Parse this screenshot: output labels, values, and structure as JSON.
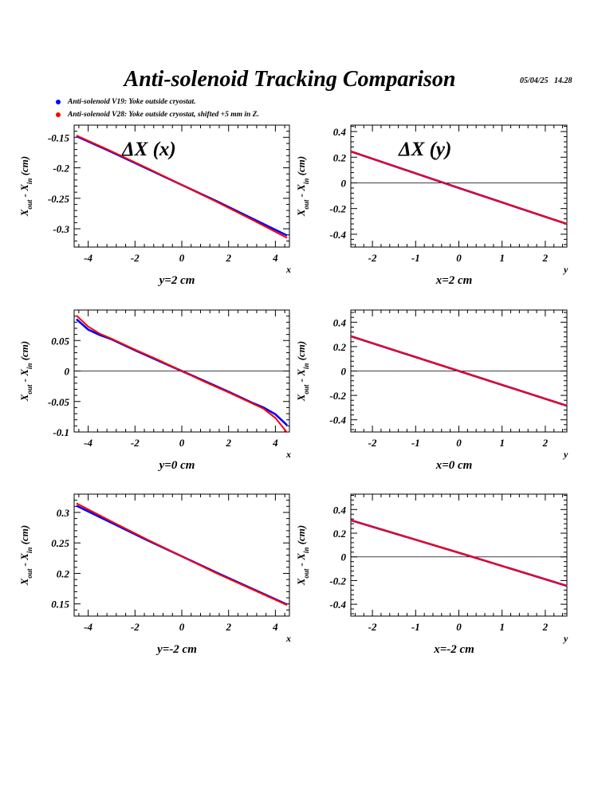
{
  "title": "Anti-solenoid Tracking Comparison",
  "timestamp": "05/04/25   14.28",
  "legend": [
    {
      "label": "Anti-solenoid V19: Yoke outside cryostat.",
      "color": "#0000ff"
    },
    {
      "label": "Anti-solenoid V28: Yoke outside cryostat, shifted +5 mm in Z.",
      "color": "#ff0000"
    }
  ],
  "y_label": {
    "main": "X",
    "sub_out": "out",
    "dash": " - X",
    "sub_in": "in",
    "unit": " (cm)"
  },
  "colors": {
    "series_a": "#0000ff",
    "series_b": "#ff0000",
    "axis": "#000000"
  },
  "chart_data": [
    {
      "type": "line",
      "panel_title": "ΔX (x)",
      "condition_label": "y=2 cm",
      "axis_end_label": "x",
      "xlim": [
        -4.6,
        4.6
      ],
      "ylim": [
        -0.33,
        -0.13
      ],
      "xticks": [
        -4,
        -2,
        0,
        2,
        4
      ],
      "yticks": [
        -0.15,
        -0.2,
        -0.25,
        -0.3
      ],
      "ytick_labels": [
        "-0.15",
        "-0.2",
        "-0.25",
        "-0.3"
      ],
      "zero_line": false,
      "x": [
        -4.5,
        -3,
        -1.5,
        0,
        1.5,
        3,
        4.5
      ],
      "series": [
        {
          "color": "#0000ff",
          "values": [
            -0.148,
            -0.174,
            -0.201,
            -0.228,
            -0.255,
            -0.283,
            -0.311
          ]
        },
        {
          "color": "#ff0000",
          "values": [
            -0.147,
            -0.173,
            -0.2,
            -0.228,
            -0.256,
            -0.285,
            -0.315
          ]
        }
      ]
    },
    {
      "type": "line",
      "panel_title": "ΔX (y)",
      "condition_label": "x=2 cm",
      "axis_end_label": "y",
      "xlim": [
        -2.5,
        2.5
      ],
      "ylim": [
        -0.5,
        0.45
      ],
      "xticks": [
        -2,
        -1,
        0,
        1,
        2
      ],
      "yticks": [
        0.4,
        0.2,
        0,
        -0.2,
        -0.4
      ],
      "ytick_labels": [
        "0.4",
        "0.2",
        "0",
        "-0.2",
        "-0.4"
      ],
      "zero_line": true,
      "x": [
        -2.5,
        0,
        2.5
      ],
      "series": [
        {
          "color": "#0000ff",
          "values": [
            0.245,
            -0.04,
            -0.32
          ]
        },
        {
          "color": "#ff0000",
          "values": [
            0.245,
            -0.04,
            -0.32
          ]
        }
      ]
    },
    {
      "type": "line",
      "panel_title": "",
      "condition_label": "y=0 cm",
      "axis_end_label": "x",
      "xlim": [
        -4.6,
        4.6
      ],
      "ylim": [
        -0.1,
        0.1
      ],
      "xticks": [
        -4,
        -2,
        0,
        2,
        4
      ],
      "yticks": [
        0.05,
        0,
        -0.05,
        -0.1
      ],
      "ytick_labels": [
        "0.05",
        "0",
        "-0.05",
        "-0.1"
      ],
      "zero_line": true,
      "x": [
        -4.5,
        -4,
        -3.5,
        -3,
        -2,
        -1,
        0,
        1,
        2,
        3,
        3.5,
        4,
        4.5
      ],
      "series": [
        {
          "color": "#0000ff",
          "values": [
            0.085,
            0.068,
            0.059,
            0.052,
            0.034,
            0.017,
            0,
            -0.017,
            -0.034,
            -0.052,
            -0.06,
            -0.071,
            -0.089
          ]
        },
        {
          "color": "#ff0000",
          "values": [
            0.091,
            0.073,
            0.061,
            0.053,
            0.035,
            0.018,
            0,
            -0.018,
            -0.035,
            -0.053,
            -0.062,
            -0.077,
            -0.101
          ]
        }
      ]
    },
    {
      "type": "line",
      "panel_title": "",
      "condition_label": "x=0 cm",
      "axis_end_label": "y",
      "xlim": [
        -2.5,
        2.5
      ],
      "ylim": [
        -0.5,
        0.5
      ],
      "xticks": [
        -2,
        -1,
        0,
        1,
        2
      ],
      "yticks": [
        0.4,
        0.2,
        0,
        -0.2,
        -0.4
      ],
      "ytick_labels": [
        "0.4",
        "0.2",
        "0",
        "-0.2",
        "-0.4"
      ],
      "zero_line": true,
      "x": [
        -2.5,
        0,
        2.5
      ],
      "series": [
        {
          "color": "#0000ff",
          "values": [
            0.285,
            0,
            -0.285
          ]
        },
        {
          "color": "#ff0000",
          "values": [
            0.285,
            0,
            -0.285
          ]
        }
      ]
    },
    {
      "type": "line",
      "panel_title": "",
      "condition_label": "y=-2 cm",
      "axis_end_label": "x",
      "xlim": [
        -4.6,
        4.6
      ],
      "ylim": [
        0.13,
        0.33
      ],
      "xticks": [
        -4,
        -2,
        0,
        2,
        4
      ],
      "yticks": [
        0.3,
        0.25,
        0.2,
        0.15
      ],
      "ytick_labels": [
        "0.3",
        "0.25",
        "0.2",
        "0.15"
      ],
      "zero_line": false,
      "x": [
        -4.5,
        -3,
        -1.5,
        0,
        1.5,
        3,
        4.5
      ],
      "series": [
        {
          "color": "#0000ff",
          "values": [
            0.311,
            0.283,
            0.255,
            0.228,
            0.201,
            0.175,
            0.149
          ]
        },
        {
          "color": "#ff0000",
          "values": [
            0.315,
            0.285,
            0.256,
            0.228,
            0.2,
            0.174,
            0.148
          ]
        }
      ]
    },
    {
      "type": "line",
      "panel_title": "",
      "condition_label": "x=-2 cm",
      "axis_end_label": "y",
      "xlim": [
        -2.5,
        2.5
      ],
      "ylim": [
        -0.5,
        0.53
      ],
      "xticks": [
        -2,
        -1,
        0,
        1,
        2
      ],
      "yticks": [
        0.4,
        0.2,
        0,
        -0.2,
        -0.4
      ],
      "ytick_labels": [
        "0.4",
        "0.2",
        "0",
        "-0.2",
        "-0.4"
      ],
      "zero_line": true,
      "x": [
        -2.5,
        0,
        2.5
      ],
      "series": [
        {
          "color": "#0000ff",
          "values": [
            0.31,
            0.035,
            -0.245
          ]
        },
        {
          "color": "#ff0000",
          "values": [
            0.31,
            0.035,
            -0.245
          ]
        }
      ]
    }
  ]
}
